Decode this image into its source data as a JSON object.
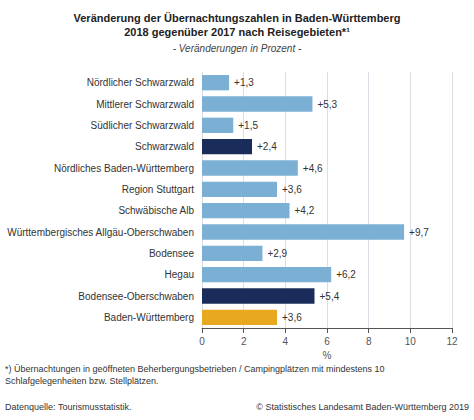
{
  "chart_data": {
    "type": "bar",
    "orientation": "horizontal",
    "title": "Veränderung der Übernachtungszahlen in Baden-Württemberg\n2018 gegenüber 2017 nach Reisegebieten*¹",
    "subtitle": "- Veränderungen in Prozent -",
    "categories": [
      "Nördlicher Schwarzwald",
      "Mittlerer Schwarzwald",
      "Südlicher Schwarzwald",
      "Schwarzwald",
      "Nördliches Baden-Württemberg",
      "Region Stuttgart",
      "Schwäbische Alb",
      "Württembergisches Allgäu-Oberschwaben",
      "Bodensee",
      "Hegau",
      "Bodensee-Oberschwaben",
      "Baden-Württemberg"
    ],
    "values": [
      1.3,
      5.3,
      1.5,
      2.4,
      4.6,
      3.6,
      4.2,
      9.7,
      2.9,
      6.2,
      5.4,
      3.6
    ],
    "value_labels": [
      "+1,3",
      "+5,3",
      "+1,5",
      "+2,4",
      "+4,6",
      "+3,6",
      "+4,2",
      "+9,7",
      "+2,9",
      "+6,2",
      "+5,4",
      "+3,6"
    ],
    "data_labels": true,
    "colors": [
      "#7bafd4",
      "#7bafd4",
      "#7bafd4",
      "#1a2d5a",
      "#7bafd4",
      "#7bafd4",
      "#7bafd4",
      "#7bafd4",
      "#7bafd4",
      "#7bafd4",
      "#1a2d5a",
      "#e8a820"
    ],
    "xlabel": "%",
    "xlim": [
      0,
      12
    ],
    "xticks": [
      0,
      2,
      4,
      6,
      8,
      10,
      12
    ],
    "grid": true,
    "annotations": [
      "*) Übernachtungen in geöffneten Beherbergungsbetrieben / Campingplätzen mit mindestens 10",
      "Schlafgelegenheiten bzw. Stellplätzen.",
      "Datenquelle: Tourismusstatistik.",
      "© Statistisches Landesamt Baden-Württemberg 2019"
    ]
  }
}
